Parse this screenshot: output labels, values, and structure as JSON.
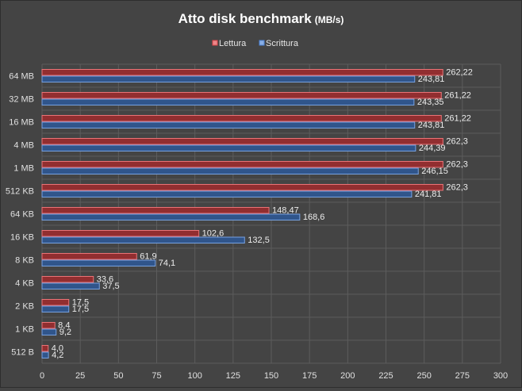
{
  "chart_data": {
    "type": "bar",
    "orientation": "horizontal",
    "title": "Atto disk benchmark",
    "title_unit": "(MB/s)",
    "xlabel": "",
    "ylabel": "",
    "xlim": [
      0,
      300
    ],
    "x_ticks": [
      0,
      25,
      50,
      75,
      100,
      125,
      150,
      175,
      200,
      225,
      250,
      275,
      300
    ],
    "grid": true,
    "legend_position": "top-center",
    "categories": [
      "64 MB",
      "32 MB",
      "16 MB",
      "4 MB",
      "1 MB",
      "512 KB",
      "64 KB",
      "16 KB",
      "8 KB",
      "4 KB",
      "2 KB",
      "1 KB",
      "512 B"
    ],
    "series": [
      {
        "name": "Lettura",
        "color": "#e0464a",
        "values": [
          262.22,
          261.22,
          261.22,
          262.3,
          262.3,
          262.3,
          148.47,
          102.6,
          61.9,
          33.6,
          17.5,
          8.4,
          4.0
        ],
        "labels": [
          "262,22",
          "261,22",
          "261,22",
          "262,3",
          "262,3",
          "262,3",
          "148,47",
          "102,6",
          "61,9",
          "33,6",
          "17,5",
          "8,4",
          "4,0"
        ]
      },
      {
        "name": "Scrittura",
        "color": "#4a82d6",
        "values": [
          243.81,
          243.35,
          243.81,
          244.39,
          246.15,
          241.81,
          168.6,
          132.5,
          74.1,
          37.5,
          17.5,
          9.2,
          4.2
        ],
        "labels": [
          "243,81",
          "243,35",
          "243,81",
          "244,39",
          "246,15",
          "241,81",
          "168,6",
          "132,5",
          "74,1",
          "37,5",
          "17,5",
          "9,2",
          "4,2"
        ]
      }
    ]
  }
}
